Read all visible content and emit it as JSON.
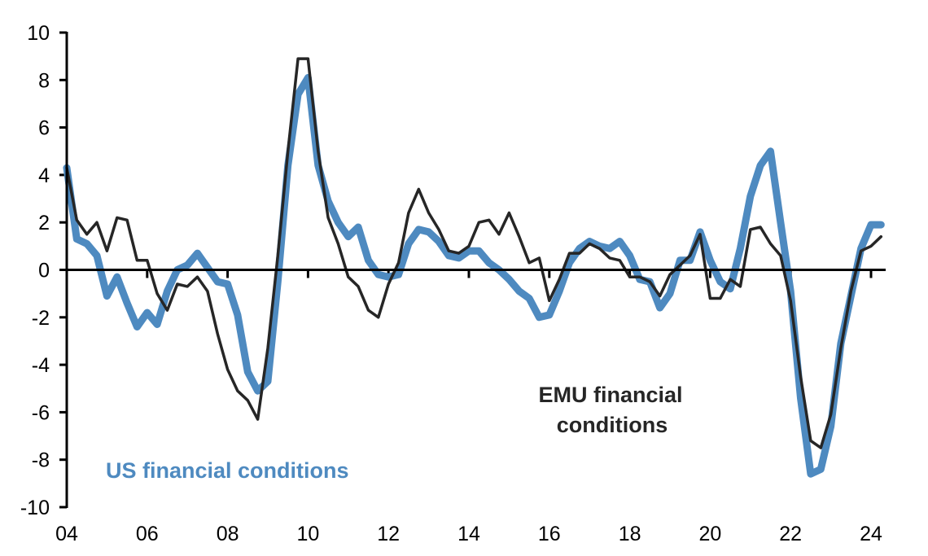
{
  "chart_data": {
    "type": "line",
    "title": "",
    "xlabel": "",
    "ylabel": "",
    "ylim": [
      -10,
      10
    ],
    "yticks": [
      10,
      8,
      6,
      4,
      2,
      0,
      -2,
      -4,
      -6,
      -8,
      -10
    ],
    "xtick_labels": [
      "04",
      "06",
      "08",
      "10",
      "12",
      "14",
      "16",
      "18",
      "20",
      "22",
      "24"
    ],
    "xtick_years": [
      2004,
      2006,
      2008,
      2010,
      2012,
      2014,
      2016,
      2018,
      2020,
      2022,
      2024
    ],
    "grid": false,
    "legend": "none (inline annotations)",
    "x": [
      "2004Q1",
      "2004Q2",
      "2004Q3",
      "2004Q4",
      "2005Q1",
      "2005Q2",
      "2005Q3",
      "2005Q4",
      "2006Q1",
      "2006Q2",
      "2006Q3",
      "2006Q4",
      "2007Q1",
      "2007Q2",
      "2007Q3",
      "2007Q4",
      "2008Q1",
      "2008Q2",
      "2008Q3",
      "2008Q4",
      "2009Q1",
      "2009Q2",
      "2009Q3",
      "2009Q4",
      "2010Q1",
      "2010Q2",
      "2010Q3",
      "2010Q4",
      "2011Q1",
      "2011Q2",
      "2011Q3",
      "2011Q4",
      "2012Q1",
      "2012Q2",
      "2012Q3",
      "2012Q4",
      "2013Q1",
      "2013Q2",
      "2013Q3",
      "2013Q4",
      "2014Q1",
      "2014Q2",
      "2014Q3",
      "2014Q4",
      "2015Q1",
      "2015Q2",
      "2015Q3",
      "2015Q4",
      "2016Q1",
      "2016Q2",
      "2016Q3",
      "2016Q4",
      "2017Q1",
      "2017Q2",
      "2017Q3",
      "2017Q4",
      "2018Q1",
      "2018Q2",
      "2018Q3",
      "2018Q4",
      "2019Q1",
      "2019Q2",
      "2019Q3",
      "2019Q4",
      "2020Q1",
      "2020Q2",
      "2020Q3",
      "2020Q4",
      "2021Q1",
      "2021Q2",
      "2021Q3",
      "2021Q4",
      "2022Q1",
      "2022Q2",
      "2022Q3",
      "2022Q4",
      "2023Q1",
      "2023Q2",
      "2023Q3",
      "2023Q4",
      "2024Q1",
      "2024Q2"
    ],
    "series": [
      {
        "name": "EMU financial conditions",
        "color": "#262626",
        "values": [
          4.3,
          2.1,
          1.5,
          2.0,
          0.8,
          2.2,
          2.1,
          0.4,
          0.4,
          -1.0,
          -1.7,
          -0.6,
          -0.7,
          -0.3,
          -0.9,
          -2.7,
          -4.2,
          -5.1,
          -5.5,
          -6.3,
          -3.3,
          0.6,
          5.0,
          8.9,
          8.9,
          5.0,
          2.2,
          1.1,
          -0.3,
          -0.7,
          -1.7,
          -2.0,
          -0.6,
          0.3,
          2.4,
          3.4,
          2.4,
          1.7,
          0.8,
          0.7,
          1.0,
          2.0,
          2.1,
          1.5,
          2.4,
          1.4,
          0.3,
          0.5,
          -1.3,
          -0.4,
          0.7,
          0.7,
          1.1,
          0.9,
          0.5,
          0.4,
          -0.3,
          -0.3,
          -0.5,
          -1.1,
          -0.2,
          0.2,
          0.6,
          1.5,
          -1.2,
          -1.2,
          -0.4,
          -0.7,
          1.7,
          1.8,
          1.1,
          0.6,
          -1.3,
          -4.5,
          -7.2,
          -7.5,
          -6.1,
          -3.3,
          -0.9,
          0.8,
          1.0,
          1.4
        ]
      },
      {
        "name": "US financial conditions",
        "color": "#4E8AC0",
        "values": [
          4.3,
          1.3,
          1.1,
          0.6,
          -1.1,
          -0.3,
          -1.4,
          -2.4,
          -1.8,
          -2.3,
          -0.9,
          0.0,
          0.2,
          0.7,
          0.1,
          -0.5,
          -0.6,
          -1.9,
          -4.3,
          -5.1,
          -4.7,
          -0.5,
          4.4,
          7.4,
          8.1,
          4.4,
          2.9,
          2.0,
          1.4,
          1.8,
          0.4,
          -0.2,
          -0.3,
          -0.2,
          1.1,
          1.7,
          1.6,
          1.2,
          0.6,
          0.5,
          0.8,
          0.8,
          0.3,
          0.0,
          -0.4,
          -0.9,
          -1.2,
          -2.0,
          -1.9,
          -0.9,
          0.3,
          0.9,
          1.2,
          1.0,
          0.9,
          1.2,
          0.6,
          -0.4,
          -0.5,
          -1.6,
          -1.0,
          0.4,
          0.4,
          1.6,
          0.4,
          -0.5,
          -0.8,
          0.9,
          3.1,
          4.4,
          5.0,
          2.0,
          -0.9,
          -5.4,
          -8.6,
          -8.4,
          -6.6,
          -3.1,
          -1.1,
          0.9,
          1.9,
          1.9
        ]
      }
    ],
    "annotations": {
      "emu_line1": "EMU financial",
      "emu_line2": "conditions",
      "us": "US financial conditions"
    }
  }
}
